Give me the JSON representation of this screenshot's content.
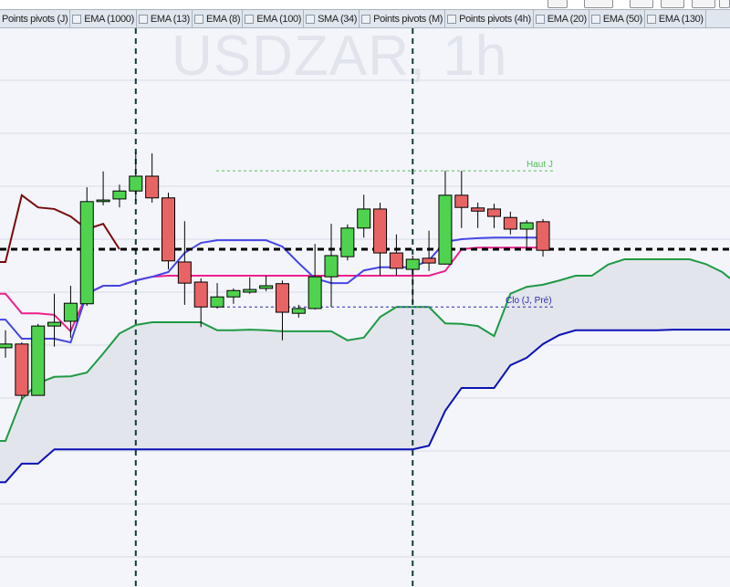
{
  "indicator_tabs": [
    {
      "label": "Points pivots (J)"
    },
    {
      "label": "EMA (1000)"
    },
    {
      "label": "EMA (13)"
    },
    {
      "label": "EMA (8)"
    },
    {
      "label": "EMA (100)"
    },
    {
      "label": "SMA (34)"
    },
    {
      "label": "Points pivots (M)"
    },
    {
      "label": "Points pivots (4h)"
    },
    {
      "label": "EMA (20)"
    },
    {
      "label": "EMA (50)"
    },
    {
      "label": "EMA (130)"
    }
  ],
  "watermark": "USDZAR, 1h",
  "colors": {
    "bull": "#4fd34f",
    "bear": "#e86464",
    "maroon_line": "#7a0a0a",
    "magenta_line": "#ee1f8e",
    "blue_line": "#4646e6",
    "cloud_a": "#1e9a44",
    "cloud_b": "#0b13b5",
    "cloud_fill": "#e3e5ec",
    "haut_line": "#55c255",
    "clo_line": "#2a2ab0",
    "background": "#f3f5fb",
    "grid": "#d7dbe4"
  },
  "chart_data": {
    "type": "candlestick",
    "title": "USDZAR, 1h",
    "grid": true,
    "ylim": [
      -5.7,
      100
    ],
    "grid_step": 10,
    "candles": [
      [
        39.5,
        42.8,
        37.6,
        40.2
      ],
      [
        40.2,
        40.5,
        29.8,
        30.5
      ],
      [
        30.5,
        44.0,
        30.5,
        43.6
      ],
      [
        43.6,
        49.7,
        39.7,
        44.3
      ],
      [
        44.5,
        51.2,
        41.4,
        47.9
      ],
      [
        47.8,
        69.8,
        47.4,
        67.1
      ],
      [
        67.1,
        72.8,
        66.4,
        67.4
      ],
      [
        67.6,
        70.3,
        66.0,
        69.1
      ],
      [
        69.1,
        76.4,
        67.2,
        71.9
      ],
      [
        71.9,
        76.2,
        66.9,
        67.8
      ],
      [
        67.8,
        68.8,
        54.3,
        55.9
      ],
      [
        55.7,
        63.4,
        47.6,
        51.7
      ],
      [
        51.9,
        52.6,
        43.4,
        47.2
      ],
      [
        47.2,
        51.7,
        46.9,
        49.1
      ],
      [
        49.1,
        50.7,
        47.8,
        50.3
      ],
      [
        50.0,
        52.8,
        49.7,
        50.5
      ],
      [
        50.7,
        53.1,
        50.2,
        51.2
      ],
      [
        51.6,
        52.2,
        40.9,
        46.2
      ],
      [
        46.0,
        47.6,
        45.2,
        46.9
      ],
      [
        46.9,
        59.1,
        46.7,
        52.9
      ],
      [
        52.9,
        62.9,
        47.2,
        56.9
      ],
      [
        56.7,
        62.8,
        56.0,
        62.1
      ],
      [
        62.1,
        68.4,
        60.3,
        65.7
      ],
      [
        65.7,
        66.9,
        53.1,
        57.4
      ],
      [
        57.4,
        60.9,
        53.1,
        54.5
      ],
      [
        54.3,
        56.9,
        47.9,
        56.2
      ],
      [
        56.4,
        61.6,
        54.0,
        55.5
      ],
      [
        55.3,
        72.9,
        55.2,
        68.3
      ],
      [
        68.3,
        72.9,
        62.1,
        66.0
      ],
      [
        65.9,
        66.9,
        62.1,
        65.3
      ],
      [
        65.7,
        66.7,
        62.1,
        64.3
      ],
      [
        64.1,
        65.2,
        60.9,
        61.9
      ],
      [
        61.9,
        63.6,
        57.9,
        63.1
      ],
      [
        63.3,
        63.8,
        56.7,
        57.9
      ]
    ],
    "series": [
      {
        "color_key": "maroon_line",
        "values": [
          55.7,
          68.3,
          66.0,
          65.7,
          64.3,
          61.9,
          62.9,
          58.1
        ]
      },
      {
        "color_key": "magenta_line",
        "values": [
          49.7,
          46.0,
          46.0,
          45.7,
          42.6,
          49.7,
          51.2,
          51.2,
          52.2,
          52.9,
          53.1,
          53.1,
          53.1,
          53.1,
          53.1,
          53.1,
          53.1,
          53.1,
          53.1,
          53.1,
          53.1,
          53.1,
          53.1,
          53.1,
          53.1,
          53.1,
          53.1,
          54.0,
          58.1,
          58.4,
          58.4,
          58.4,
          58.4,
          58.4
        ]
      },
      {
        "color_key": "blue_line",
        "values": [
          44.8,
          41.2,
          41.2,
          41.2,
          40.5,
          49.7,
          51.2,
          51.2,
          52.2,
          52.9,
          53.8,
          57.4,
          59.3,
          59.8,
          59.8,
          59.8,
          59.8,
          58.6,
          55.5,
          52.6,
          51.7,
          51.7,
          54.1,
          54.7,
          54.7,
          54.7,
          56.0,
          59.5,
          60.0,
          60.2,
          60.3,
          60.3,
          60.3,
          60.3
        ]
      },
      {
        "color_key": "cloud_a",
        "values": [
          21.9,
          29.8,
          32.8,
          34.0,
          34.1,
          34.8,
          38.4,
          42.2,
          43.8,
          44.3,
          44.3,
          44.3,
          44.3,
          42.8,
          42.8,
          42.9,
          42.8,
          42.6,
          42.6,
          42.6,
          42.6,
          40.9,
          41.4,
          45.3,
          47.2,
          47.2,
          47.2,
          44.1,
          44.0,
          43.6,
          41.7,
          49.7,
          51.0,
          51.4,
          52.2,
          53.1,
          53.1,
          55.2,
          56.2,
          56.2,
          56.2,
          56.2,
          56.2,
          55.3,
          53.8,
          52.6
        ]
      },
      {
        "color_key": "cloud_b",
        "values": [
          14.1,
          17.6,
          17.6,
          20.3,
          20.3,
          20.3,
          20.3,
          20.3,
          20.3,
          20.3,
          20.3,
          20.3,
          20.3,
          20.3,
          20.3,
          20.3,
          20.3,
          20.3,
          20.3,
          20.3,
          20.3,
          20.3,
          20.3,
          20.3,
          20.3,
          20.3,
          21.0,
          27.6,
          31.9,
          31.9,
          31.9,
          36.2,
          37.6,
          40.2,
          41.9,
          42.8,
          42.8,
          42.8,
          42.8,
          42.8,
          42.8,
          42.9,
          42.9,
          42.9,
          42.9,
          42.9
        ]
      }
    ],
    "levels": [
      {
        "label": "",
        "value": 58.1,
        "color_key": "black"
      },
      {
        "label": "Haut J",
        "value": 72.9,
        "color_key": "haut_line"
      },
      {
        "label": "Clo (J, Pré)",
        "value": 47.2,
        "color_key": "clo_line"
      }
    ],
    "session_separators": [
      8,
      25
    ]
  }
}
